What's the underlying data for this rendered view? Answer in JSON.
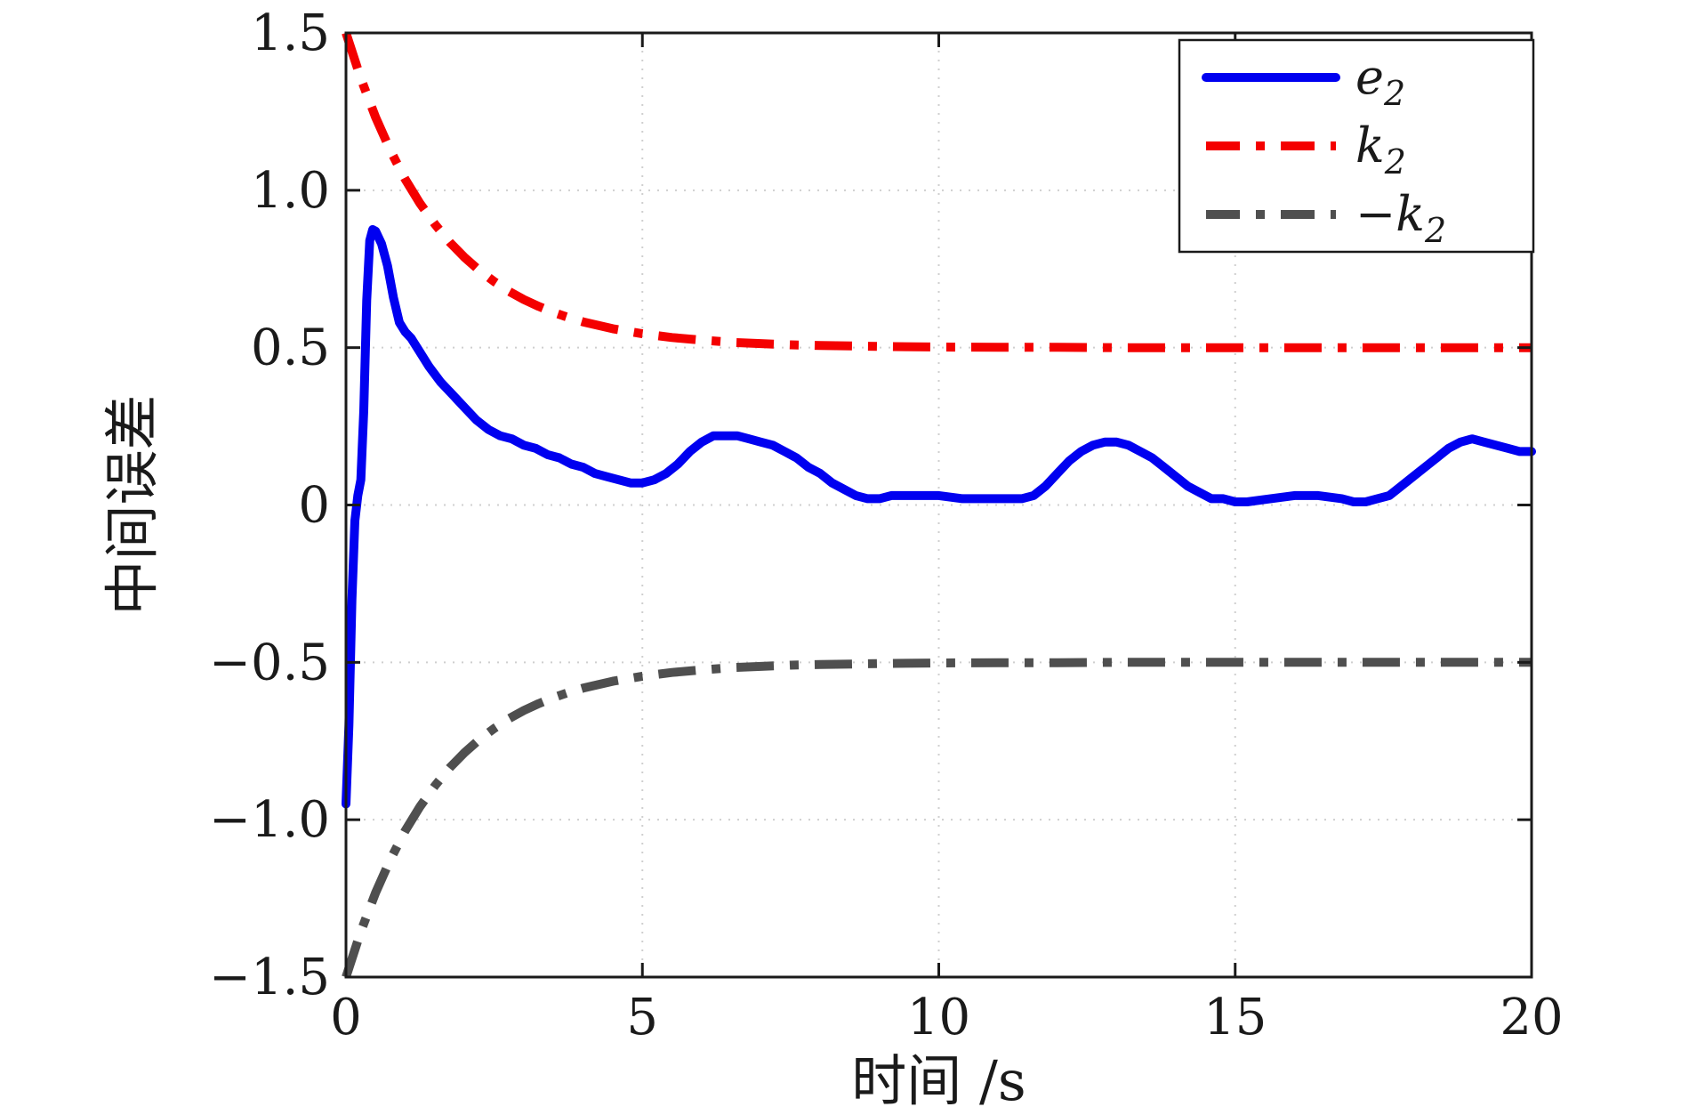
{
  "figure": {
    "background_color": "#ffffff"
  },
  "chart_data": {
    "type": "line",
    "title": "",
    "xlabel": "时间 /s",
    "ylabel": "中间误差",
    "xlim": [
      0,
      20
    ],
    "ylim": [
      -1.5,
      1.5
    ],
    "xticks": [
      0,
      5,
      10,
      15,
      20
    ],
    "xtick_labels": [
      "0",
      "5",
      "10",
      "15",
      "20"
    ],
    "yticks": [
      -1.5,
      -1.0,
      -0.5,
      0,
      0.5,
      1.0,
      1.5
    ],
    "ytick_labels": [
      "−1.5",
      "−1.0",
      "−0.5",
      "0",
      "0.5",
      "1.0",
      "1.5"
    ],
    "grid": true,
    "grid_style": "dotted",
    "legend_position": "top-right",
    "colors": {
      "axis": "#1a1a1a",
      "text": "#1a1a1a",
      "grid": "#cfcfcf",
      "background": "#ffffff",
      "series_e2": "#0000f0",
      "series_k2": "#f40000",
      "series_neg_k2": "#4f4f4f"
    },
    "series": [
      {
        "id": "e2",
        "label_main": "e",
        "label_sub": "2",
        "color": "#0000f0",
        "width": 10,
        "dash": "",
        "x": [
          0,
          0.05,
          0.1,
          0.15,
          0.2,
          0.25,
          0.3,
          0.35,
          0.4,
          0.45,
          0.5,
          0.6,
          0.7,
          0.8,
          0.9,
          1,
          1.1,
          1.2,
          1.4,
          1.6,
          1.8,
          2,
          2.2,
          2.4,
          2.6,
          2.8,
          3,
          3.2,
          3.4,
          3.6,
          3.8,
          4,
          4.2,
          4.4,
          4.6,
          4.8,
          5,
          5.2,
          5.4,
          5.6,
          5.8,
          6,
          6.2,
          6.4,
          6.6,
          6.8,
          7,
          7.2,
          7.4,
          7.6,
          7.8,
          8,
          8.2,
          8.4,
          8.6,
          8.8,
          9,
          9.2,
          9.4,
          9.6,
          9.8,
          10,
          10.4,
          10.8,
          11,
          11.2,
          11.4,
          11.6,
          11.8,
          12,
          12.2,
          12.4,
          12.6,
          12.8,
          13,
          13.2,
          13.4,
          13.6,
          13.8,
          14,
          14.2,
          14.4,
          14.6,
          14.8,
          15,
          15.2,
          15.6,
          16,
          16.4,
          16.8,
          17,
          17.2,
          17.4,
          17.6,
          17.8,
          18,
          18.2,
          18.4,
          18.6,
          18.8,
          19,
          19.2,
          19.4,
          19.6,
          19.8,
          20
        ],
        "y": [
          -0.95,
          -0.7,
          -0.3,
          -0.05,
          0.03,
          0.08,
          0.3,
          0.65,
          0.84,
          0.875,
          0.87,
          0.83,
          0.76,
          0.66,
          0.58,
          0.55,
          0.53,
          0.5,
          0.44,
          0.39,
          0.35,
          0.31,
          0.27,
          0.24,
          0.22,
          0.21,
          0.19,
          0.18,
          0.16,
          0.15,
          0.13,
          0.12,
          0.1,
          0.09,
          0.08,
          0.07,
          0.07,
          0.08,
          0.1,
          0.13,
          0.17,
          0.2,
          0.22,
          0.22,
          0.22,
          0.21,
          0.2,
          0.19,
          0.17,
          0.15,
          0.12,
          0.1,
          0.07,
          0.05,
          0.03,
          0.02,
          0.02,
          0.03,
          0.03,
          0.03,
          0.03,
          0.03,
          0.02,
          0.02,
          0.02,
          0.02,
          0.02,
          0.03,
          0.06,
          0.1,
          0.14,
          0.17,
          0.19,
          0.2,
          0.2,
          0.19,
          0.17,
          0.15,
          0.12,
          0.09,
          0.06,
          0.04,
          0.02,
          0.02,
          0.01,
          0.01,
          0.02,
          0.03,
          0.03,
          0.02,
          0.01,
          0.01,
          0.02,
          0.03,
          0.06,
          0.09,
          0.12,
          0.15,
          0.18,
          0.2,
          0.21,
          0.2,
          0.19,
          0.18,
          0.17,
          0.17
        ]
      },
      {
        "id": "k2",
        "label_main": "k",
        "label_sub": "2",
        "color": "#f40000",
        "width": 10,
        "dash": "42 18 10 18",
        "x": [
          0,
          0.25,
          0.5,
          0.75,
          1,
          1.25,
          1.5,
          1.75,
          2,
          2.25,
          2.5,
          2.75,
          3,
          3.25,
          3.5,
          3.75,
          4,
          4.5,
          5,
          5.5,
          6,
          6.5,
          7,
          7.5,
          8,
          9,
          10,
          11,
          12,
          13,
          14,
          15,
          16,
          17,
          18,
          19,
          20
        ],
        "y": [
          1.5,
          1.355,
          1.232,
          1.126,
          1.035,
          0.958,
          0.892,
          0.835,
          0.787,
          0.745,
          0.71,
          0.679,
          0.653,
          0.631,
          0.612,
          0.596,
          0.582,
          0.56,
          0.544,
          0.532,
          0.524,
          0.517,
          0.513,
          0.509,
          0.507,
          0.504,
          0.502,
          0.501,
          0.501,
          0.5,
          0.5,
          0.5,
          0.5,
          0.5,
          0.5,
          0.5,
          0.5
        ]
      },
      {
        "id": "neg-k2",
        "label_main": "−k",
        "label_sub": "2",
        "color": "#4f4f4f",
        "width": 10,
        "dash": "42 18 10 18",
        "x": [
          0,
          0.25,
          0.5,
          0.75,
          1,
          1.25,
          1.5,
          1.75,
          2,
          2.25,
          2.5,
          2.75,
          3,
          3.25,
          3.5,
          3.75,
          4,
          4.5,
          5,
          5.5,
          6,
          6.5,
          7,
          7.5,
          8,
          9,
          10,
          11,
          12,
          13,
          14,
          15,
          16,
          17,
          18,
          19,
          20
        ],
        "y": [
          -1.5,
          -1.355,
          -1.232,
          -1.126,
          -1.035,
          -0.958,
          -0.892,
          -0.835,
          -0.787,
          -0.745,
          -0.71,
          -0.679,
          -0.653,
          -0.631,
          -0.612,
          -0.596,
          -0.582,
          -0.56,
          -0.544,
          -0.532,
          -0.524,
          -0.517,
          -0.513,
          -0.509,
          -0.507,
          -0.504,
          -0.502,
          -0.501,
          -0.501,
          -0.5,
          -0.5,
          -0.5,
          -0.5,
          -0.5,
          -0.5,
          -0.5,
          -0.5
        ]
      }
    ]
  }
}
